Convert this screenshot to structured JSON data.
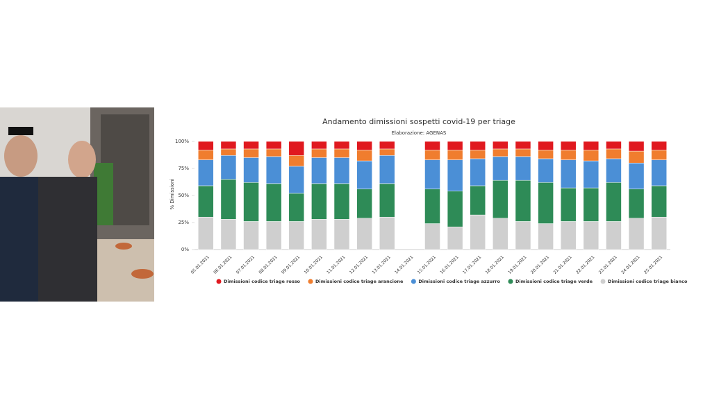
{
  "chart_data": {
    "type": "bar",
    "stacked": true,
    "title": "Andamento dimissioni sospetti covid-19 per triage",
    "subtitle": "Elaborazione: AGENAS",
    "y_label": "% Dimissioni",
    "categories": [
      "05.01.2021",
      "06.01.2021",
      "07.01.2021",
      "08.01.2021",
      "09.01.2021",
      "10.01.2021",
      "11.01.2021",
      "12.01.2021",
      "13.01.2021",
      "14.01.2021",
      "15.01.2021",
      "16.01.2021",
      "17.01.2021",
      "18.01.2021",
      "19.01.2021",
      "20.01.2021",
      "21.01.2021",
      "22.01.2021",
      "23.01.2021",
      "24.01.2021",
      "25.01.2021"
    ],
    "series": [
      {
        "name": "Dimissioni codice triage rosso",
        "color": "#e0191f",
        "values": [
          8,
          7,
          7,
          7,
          13,
          7,
          7,
          8,
          7,
          null,
          8,
          8,
          8,
          7,
          7,
          8,
          8,
          8,
          7,
          9,
          8
        ]
      },
      {
        "name": "Dimissioni codice triage arancione",
        "color": "#f07d2e",
        "values": [
          9,
          6,
          8,
          7,
          10,
          8,
          8,
          10,
          6,
          null,
          9,
          9,
          8,
          7,
          7,
          8,
          9,
          10,
          9,
          11,
          9
        ]
      },
      {
        "name": "Dimissioni codice triage azzurro",
        "color": "#4b8fd6",
        "values": [
          24,
          22,
          23,
          25,
          25,
          24,
          24,
          26,
          26,
          null,
          27,
          29,
          25,
          22,
          22,
          22,
          26,
          25,
          22,
          24,
          24
        ]
      },
      {
        "name": "Dimissioni codice triage verde",
        "color": "#2e8b57",
        "values": [
          29,
          37,
          36,
          35,
          26,
          33,
          33,
          27,
          31,
          null,
          32,
          33,
          27,
          35,
          38,
          38,
          31,
          31,
          36,
          27,
          29
        ]
      },
      {
        "name": "Dimissioni codice triage bianco",
        "color": "#cfcfcf",
        "values": [
          30,
          28,
          26,
          26,
          26,
          28,
          28,
          29,
          30,
          null,
          24,
          21,
          32,
          29,
          26,
          24,
          26,
          26,
          26,
          29,
          30
        ]
      }
    ],
    "ylim": [
      0,
      100
    ],
    "yticks": [
      {
        "value": 0,
        "label": "0%"
      },
      {
        "value": 25,
        "label": "25%"
      },
      {
        "value": 50,
        "label": "50%"
      },
      {
        "value": 75,
        "label": "75%"
      },
      {
        "value": 100,
        "label": "100%"
      }
    ],
    "grid": false
  }
}
